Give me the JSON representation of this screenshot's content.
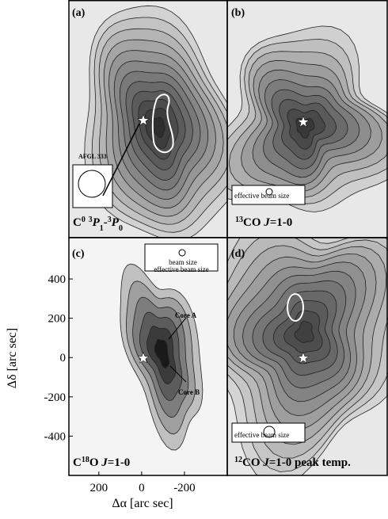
{
  "figure": {
    "axes": {
      "ylabel": "Δδ [arc sec]",
      "xlabel": "Δα [arc sec]",
      "xlim": [
        340,
        -400
      ],
      "ylim": [
        -600,
        610
      ],
      "xticks": [
        200,
        0,
        -200
      ],
      "yticks": [
        400,
        200,
        0,
        -200,
        -400
      ]
    },
    "panels": [
      {
        "label": "(a)",
        "title": [
          {
            "text": "C"
          },
          {
            "text": "0",
            "pos": "sup"
          },
          {
            "text": " "
          },
          {
            "text": "3",
            "pos": "sup"
          },
          {
            "text": "P",
            "italic": true
          },
          {
            "text": "1",
            "pos": "sub"
          },
          {
            "text": "-"
          },
          {
            "text": "3",
            "pos": "sup"
          },
          {
            "text": "P",
            "italic": true
          },
          {
            "text": "0",
            "pos": "sub"
          }
        ],
        "notes": [
          "AFGL 333"
        ]
      },
      {
        "label": "(b)",
        "title": [
          {
            "text": "13",
            "pos": "sup"
          },
          {
            "text": "CO "
          },
          {
            "text": "J",
            "italic": true
          },
          {
            "text": "=1-0"
          }
        ],
        "notes": [
          "effective beam size"
        ]
      },
      {
        "label": "(c)",
        "title": [
          {
            "text": "C"
          },
          {
            "text": "18",
            "pos": "sup"
          },
          {
            "text": "O "
          },
          {
            "text": "J",
            "italic": true
          },
          {
            "text": "=1-0"
          }
        ],
        "notes": [
          "beam size",
          "effective beam size",
          "Core A",
          "Core B"
        ]
      },
      {
        "label": "(d)",
        "title": [
          {
            "text": "12",
            "pos": "sup"
          },
          {
            "text": "CO "
          },
          {
            "text": "J",
            "italic": true
          },
          {
            "text": "=1-0 peak temp."
          }
        ],
        "notes": [
          "effective beam size"
        ]
      }
    ]
  }
}
